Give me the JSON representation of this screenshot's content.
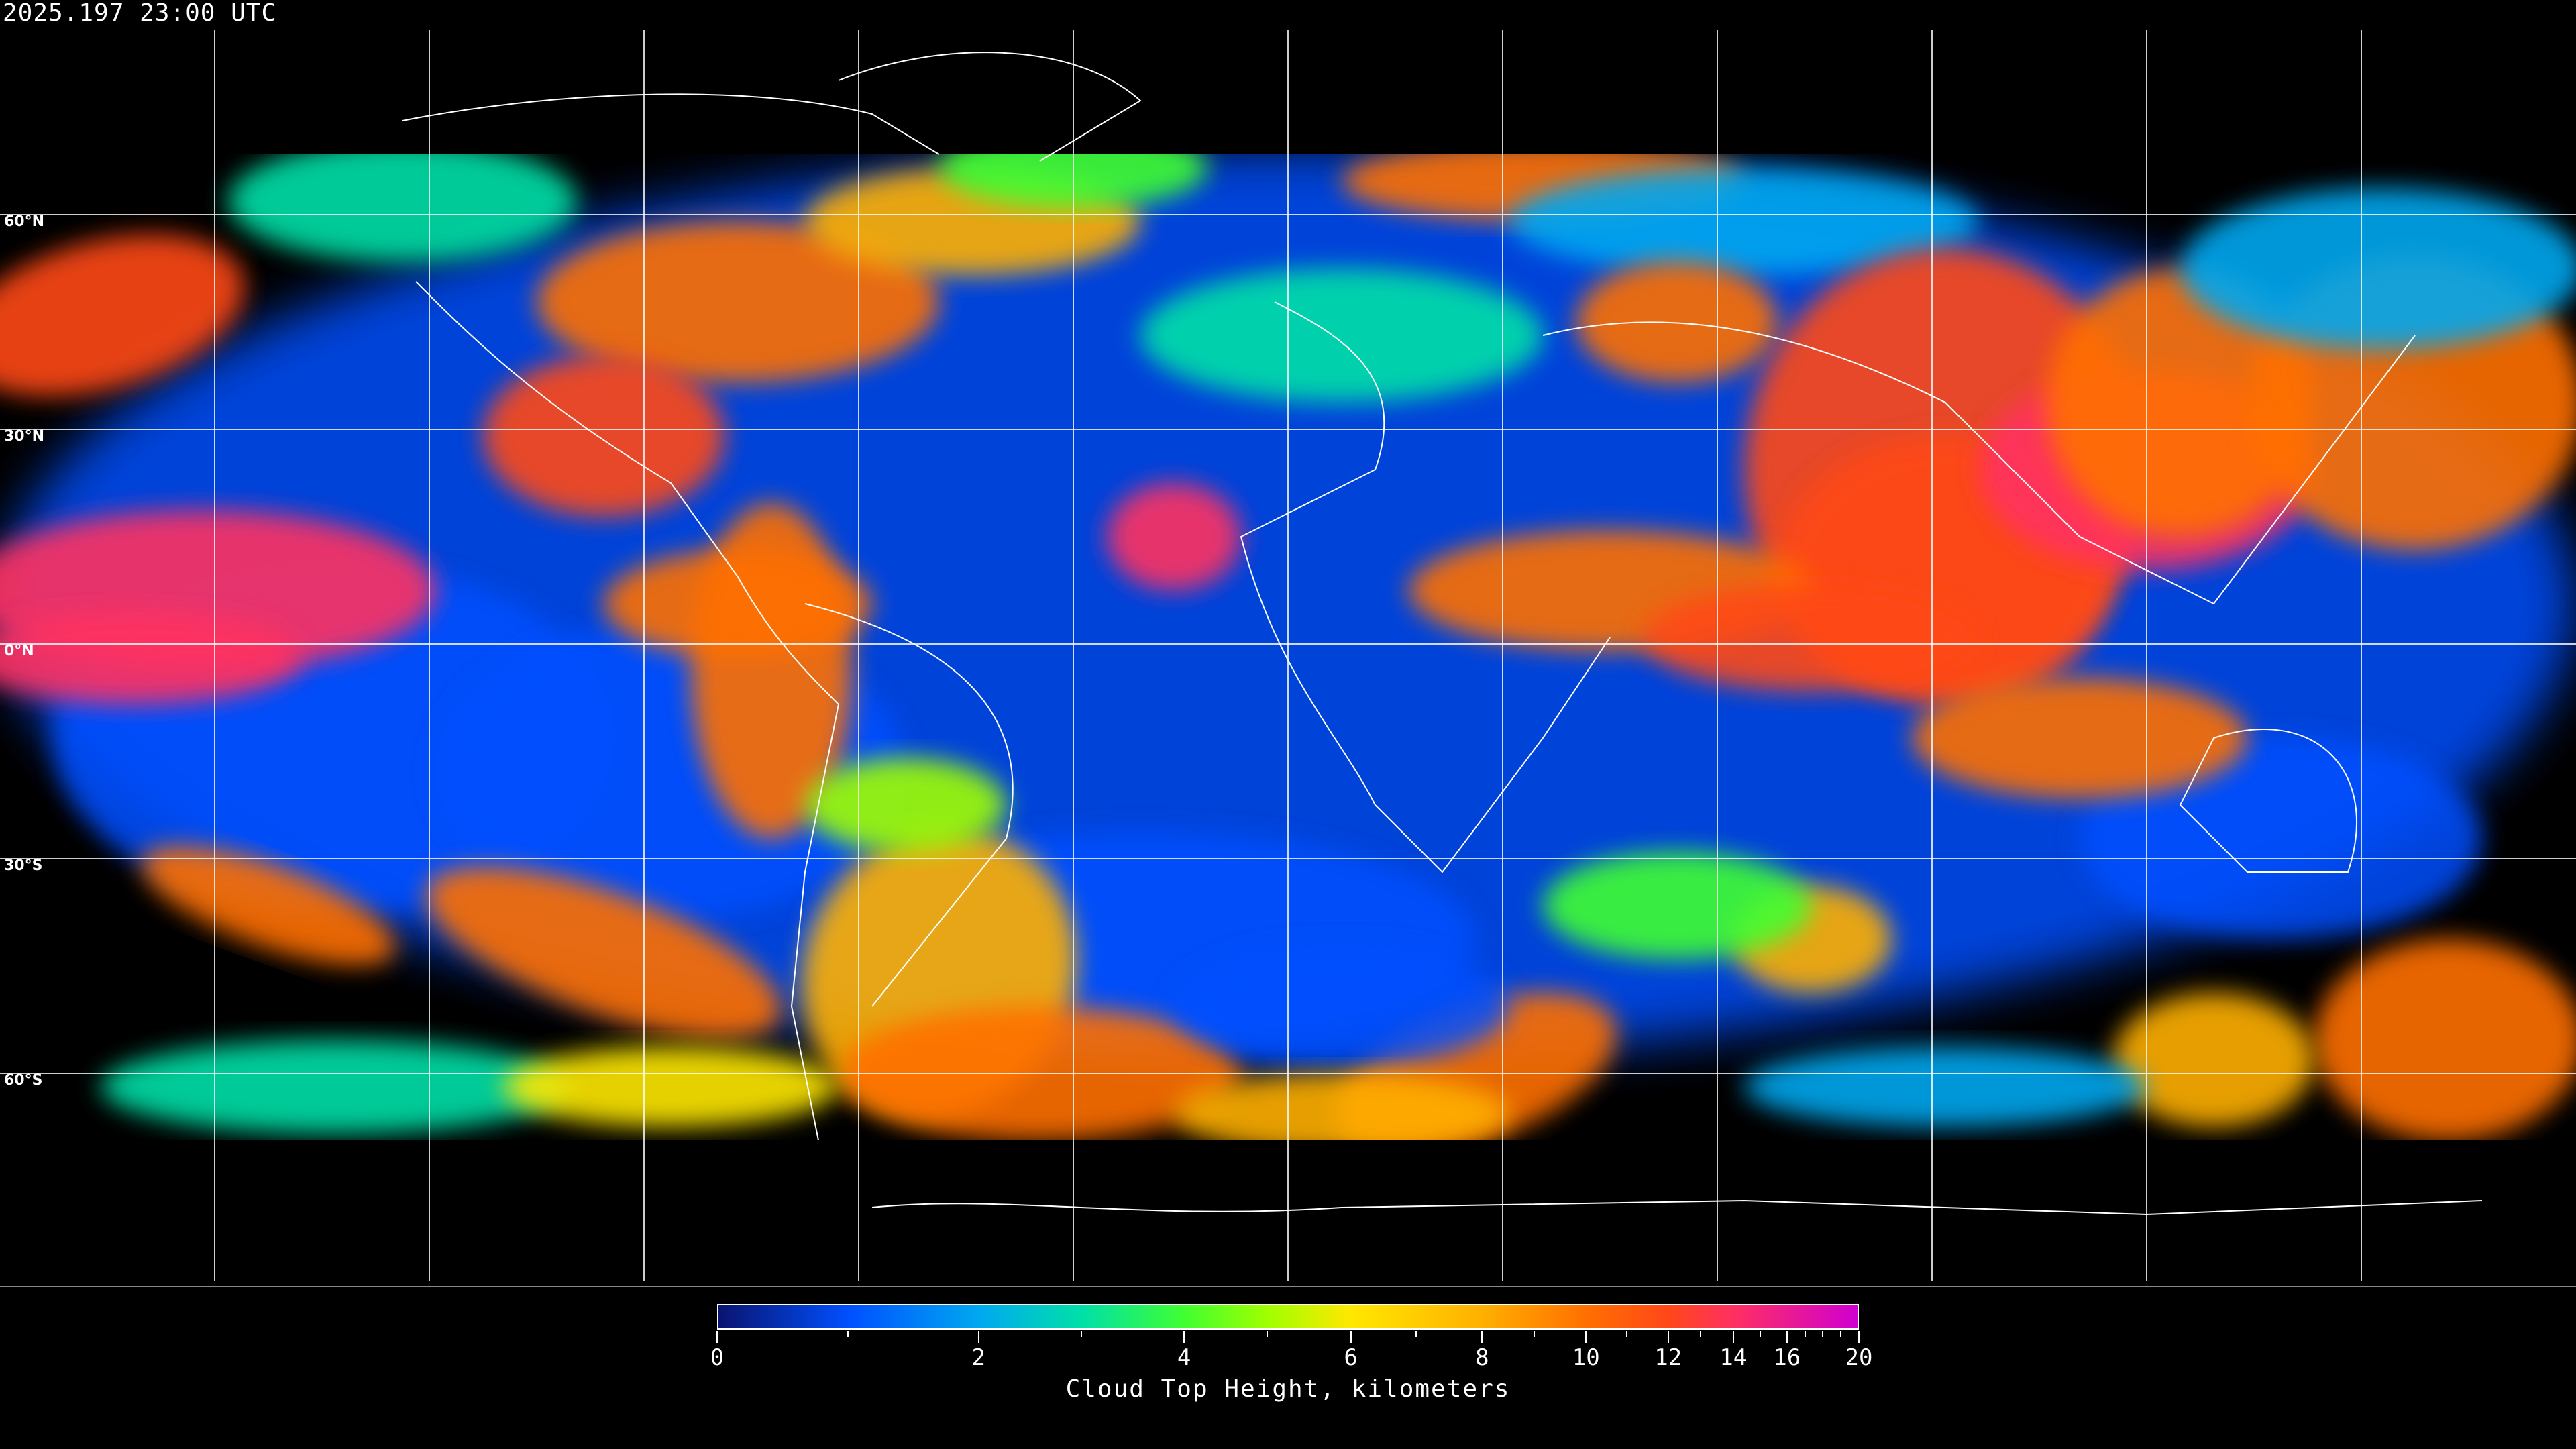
{
  "title": "2025.197 23:00 UTC",
  "map": {
    "projection": "equirectangular",
    "background": "#000000",
    "grid_color": "#ffffff",
    "coastline_color": "#ffffff",
    "lat_labels": [
      "60°N",
      "30°N",
      "0°N",
      "30°S",
      "60°S"
    ]
  },
  "colorbar": {
    "label": "Cloud Top Height, kilometers",
    "range": [
      0,
      20
    ],
    "major_ticks": [
      {
        "value": 0,
        "label": "0"
      },
      {
        "value": 2,
        "label": "2"
      },
      {
        "value": 4,
        "label": "4"
      },
      {
        "value": 6,
        "label": "6"
      },
      {
        "value": 8,
        "label": "8"
      },
      {
        "value": 10,
        "label": "10"
      },
      {
        "value": 12,
        "label": "12"
      },
      {
        "value": 14,
        "label": "14"
      },
      {
        "value": 16,
        "label": "16"
      },
      {
        "value": 20,
        "label": "20"
      }
    ],
    "minor_ticks": [
      1,
      3,
      5,
      7,
      9,
      11,
      13,
      15,
      17,
      18,
      19
    ],
    "color_stops": [
      {
        "value": 0,
        "color": "#0a1470"
      },
      {
        "value": 1,
        "color": "#0050ff"
      },
      {
        "value": 2,
        "color": "#00a8f0"
      },
      {
        "value": 3,
        "color": "#00e0a8"
      },
      {
        "value": 4,
        "color": "#40ff30"
      },
      {
        "value": 5,
        "color": "#a0ff00"
      },
      {
        "value": 6,
        "color": "#ffe800"
      },
      {
        "value": 8,
        "color": "#ffb000"
      },
      {
        "value": 10,
        "color": "#ff7000"
      },
      {
        "value": 12,
        "color": "#ff4818"
      },
      {
        "value": 14,
        "color": "#ff3060"
      },
      {
        "value": 20,
        "color": "#d000d0"
      }
    ]
  }
}
